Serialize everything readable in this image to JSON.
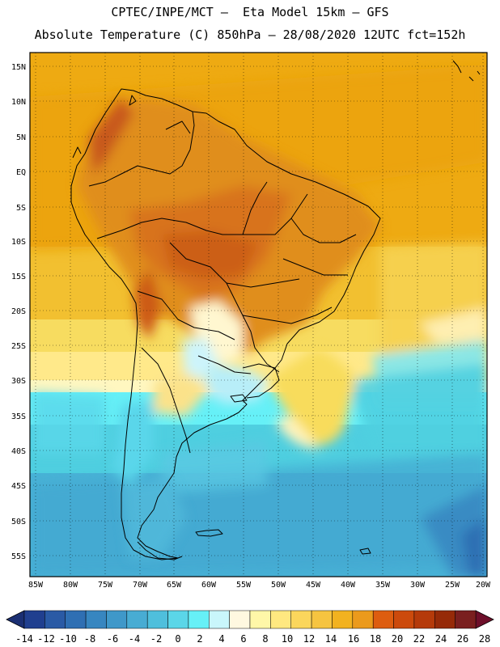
{
  "header": {
    "line1": "CPTEC/INPE/MCT –  Eta Model 15km – GFS",
    "line2": "Absolute Temperature (C) 850hPa – 28/08/2020 12UTC fct=152h"
  },
  "map": {
    "lat_labels": [
      "15N",
      "10N",
      "5N",
      "EQ",
      "5S",
      "10S",
      "15S",
      "20S",
      "25S",
      "30S",
      "35S",
      "40S",
      "45S",
      "50S",
      "55S"
    ],
    "lon_labels": [
      "85W",
      "80W",
      "75W",
      "70W",
      "65W",
      "60W",
      "55W",
      "50W",
      "45W",
      "40W",
      "35W",
      "30W",
      "25W",
      "20W"
    ]
  },
  "colorbar": {
    "ticks": [
      "-14",
      "-12",
      "-10",
      "-8",
      "-6",
      "-4",
      "-2",
      "0",
      "2",
      "4",
      "6",
      "8",
      "10",
      "12",
      "14",
      "16",
      "18",
      "20",
      "22",
      "24",
      "26",
      "28"
    ],
    "colors": [
      "#203f8f",
      "#2a5aa5",
      "#2f6fb3",
      "#3786c0",
      "#3f98c9",
      "#48acd3",
      "#4fbfdc",
      "#5bd6e8",
      "#66f0f7",
      "#c9f6fb",
      "#fff8e0",
      "#fff7a8",
      "#ffe880",
      "#fbd65c",
      "#f6c440",
      "#f2b220",
      "#eb9a1c",
      "#dd5d10",
      "#cc4a0c",
      "#b53a0a",
      "#962a08",
      "#7a1f1f"
    ],
    "low_color": "#1b2f73",
    "high_color": "#6e0f2a"
  }
}
